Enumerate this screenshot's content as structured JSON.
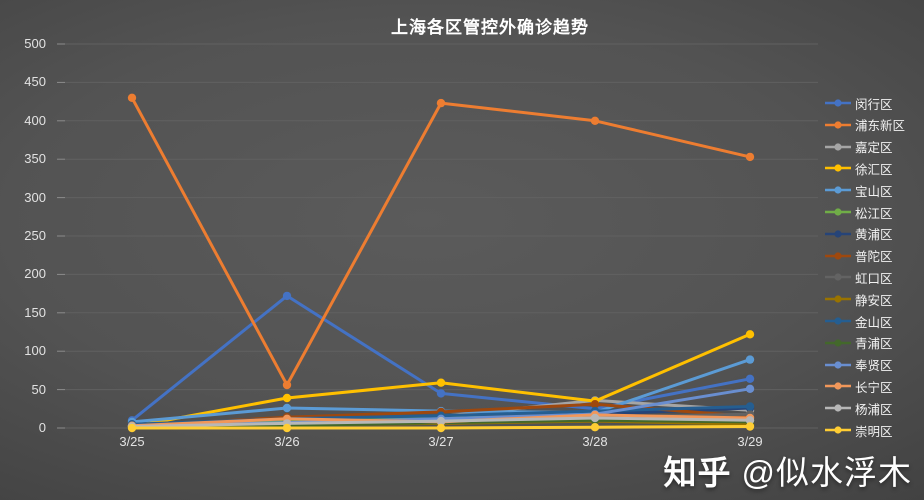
{
  "title": "上海各区管控外确诊趋势",
  "watermark": {
    "brand": "知乎",
    "handle": "@似水浮木"
  },
  "chart_data": {
    "type": "line",
    "title": "上海各区管控外确诊趋势",
    "x": [
      "3/25",
      "3/26",
      "3/27",
      "3/28",
      "3/29"
    ],
    "ylim": [
      0,
      500
    ],
    "y_ticks": [
      0,
      50,
      100,
      150,
      200,
      250,
      300,
      350,
      400,
      450,
      500
    ],
    "grid": true,
    "legend_position": "right",
    "series": [
      {
        "name": "闵行区",
        "color": "#4472C4",
        "values": [
          10,
          172,
          45,
          25,
          64
        ]
      },
      {
        "name": "浦东新区",
        "color": "#ED7D31",
        "values": [
          430,
          56,
          423,
          400,
          353
        ]
      },
      {
        "name": "嘉定区",
        "color": "#A5A5A5",
        "values": [
          3,
          10,
          15,
          36,
          23
        ]
      },
      {
        "name": "徐汇区",
        "color": "#FFC000",
        "values": [
          2,
          39,
          59,
          35,
          122
        ]
      },
      {
        "name": "宝山区",
        "color": "#5B9BD5",
        "values": [
          8,
          26,
          22,
          20,
          89
        ]
      },
      {
        "name": "松江区",
        "color": "#70AD47",
        "values": [
          2,
          8,
          14,
          12,
          10
        ]
      },
      {
        "name": "黄浦区",
        "color": "#264478",
        "values": [
          4,
          6,
          10,
          18,
          26
        ]
      },
      {
        "name": "普陀区",
        "color": "#9E480E",
        "values": [
          3,
          14,
          21,
          31,
          15
        ]
      },
      {
        "name": "虹口区",
        "color": "#636363",
        "values": [
          2,
          5,
          8,
          14,
          18
        ]
      },
      {
        "name": "静安区",
        "color": "#997300",
        "values": [
          1,
          4,
          6,
          9,
          5
        ]
      },
      {
        "name": "金山区",
        "color": "#255E91",
        "values": [
          5,
          12,
          16,
          22,
          28
        ]
      },
      {
        "name": "青浦区",
        "color": "#43682B",
        "values": [
          1,
          3,
          7,
          10,
          8
        ]
      },
      {
        "name": "奉贤区",
        "color": "#698ED0",
        "values": [
          2,
          7,
          12,
          18,
          51
        ]
      },
      {
        "name": "长宁区",
        "color": "#F1975A",
        "values": [
          3,
          12,
          8,
          17,
          13
        ]
      },
      {
        "name": "杨浦区",
        "color": "#B7B7B7",
        "values": [
          2,
          6,
          9,
          13,
          10
        ]
      },
      {
        "name": "崇明区",
        "color": "#FFCD33",
        "values": [
          0,
          0,
          0,
          1,
          2
        ]
      }
    ]
  }
}
